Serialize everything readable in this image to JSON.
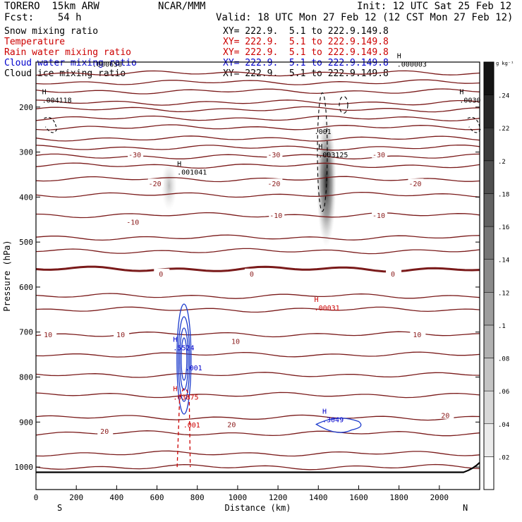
{
  "header": {
    "model": "TORERO  15km ARW",
    "org": "NCAR/MMM",
    "init": "Init: 12 UTC Sat 25 Feb 12",
    "fcst": "Fcst:    54 h",
    "valid": "Valid: 18 UTC Mon 27 Feb 12 (12 CST Mon 27 Feb 12)"
  },
  "legend": [
    {
      "name": "Snow mixing ratio",
      "xy": "XY= 222.9.  5.1 to 222.9.149.8",
      "color": "#000000"
    },
    {
      "name": "Temperature",
      "xy": "XY= 222.9.  5.1 to 222.9.149.8",
      "color": "#cc0000"
    },
    {
      "name": "Rain water mixing ratio",
      "xy": "XY= 222.9.  5.1 to 222.9.149.8",
      "color": "#cc0000"
    },
    {
      "name": "Cloud water mixing ratio",
      "xy": "XY= 222.9.  5.1 to 222.9.149.8",
      "color": "#0000cc"
    },
    {
      "name": "Cloud ice mixing ratio",
      "xy": "XY= 222.9.  5.1 to 222.9.149.8",
      "color": "#000000"
    }
  ],
  "chart_data": {
    "type": "heatmap",
    "xlabel": "Distance (km)",
    "ylabel": "Pressure (hPa)",
    "xlim": [
      0,
      2200
    ],
    "ylim": [
      1050,
      100
    ],
    "x_ticks": [
      "0",
      "200",
      "400",
      "600",
      "800",
      "1000",
      "1200",
      "1400",
      "1600",
      "1800",
      "2000"
    ],
    "x_tick_values": [
      0,
      200,
      400,
      600,
      800,
      1000,
      1200,
      1400,
      1600,
      1800,
      2000
    ],
    "y_ticks": [
      "200",
      "300",
      "400",
      "500",
      "600",
      "700",
      "800",
      "900",
      "1000"
    ],
    "y_tick_values": [
      200,
      300,
      400,
      500,
      600,
      700,
      800,
      900,
      1000
    ],
    "left_end_label": "S",
    "right_end_label": "N",
    "colorbar": {
      "unit": "g kg⁻¹",
      "ticks": [
        ".02",
        ".04",
        ".06",
        ".08",
        ".1",
        ".12",
        ".14",
        ".16",
        ".18",
        ".2",
        ".22",
        ".24"
      ],
      "tick_values": [
        0.02,
        0.04,
        0.06,
        0.08,
        0.1,
        0.12,
        0.14,
        0.16,
        0.18,
        0.2,
        0.22,
        0.24
      ],
      "range": [
        0,
        0.26
      ]
    },
    "temperature_contours": {
      "color": "#7a1a1a",
      "levels_p": [
        1000,
        970,
        925,
        890,
        840,
        795,
        750,
        705,
        650,
        620,
        560,
        520,
        490,
        440,
        395,
        360,
        330,
        310,
        290,
        270,
        245,
        225,
        205,
        190,
        165,
        145,
        125
      ],
      "labels": [
        {
          "x": 60,
          "p": 705,
          "text": "10"
        },
        {
          "x": 420,
          "p": 705,
          "text": "10"
        },
        {
          "x": 990,
          "p": 720,
          "text": "10"
        },
        {
          "x": 1890,
          "p": 705,
          "text": "10"
        },
        {
          "x": 340,
          "p": 920,
          "text": "20"
        },
        {
          "x": 970,
          "p": 905,
          "text": "20"
        },
        {
          "x": 2030,
          "p": 885,
          "text": "20"
        },
        {
          "x": 620,
          "p": 570,
          "text": "0"
        },
        {
          "x": 1070,
          "p": 570,
          "text": "0"
        },
        {
          "x": 1770,
          "p": 570,
          "text": "0"
        },
        {
          "x": 480,
          "p": 455,
          "text": "-10"
        },
        {
          "x": 1190,
          "p": 440,
          "text": "-10"
        },
        {
          "x": 1700,
          "p": 440,
          "text": "-10"
        },
        {
          "x": 590,
          "p": 370,
          "text": "-20"
        },
        {
          "x": 1180,
          "p": 370,
          "text": "-20"
        },
        {
          "x": 1880,
          "p": 370,
          "text": "-20"
        },
        {
          "x": 490,
          "p": 305,
          "text": "-30"
        },
        {
          "x": 1180,
          "p": 305,
          "text": "-30"
        },
        {
          "x": 1700,
          "p": 305,
          "text": "-30"
        }
      ],
      "zero_contour_p": 560
    },
    "extrema_labels": [
      {
        "x": 30,
        "p": 190,
        "mark": "H",
        "text": ".004118",
        "color": "#000000"
      },
      {
        "x": 280,
        "p": 110,
        "mark": "",
        "text": ".000650",
        "color": "#000000"
      },
      {
        "x": 700,
        "p": 350,
        "mark": "H",
        "text": ".001041",
        "color": "#000000"
      },
      {
        "x": 1400,
        "p": 312,
        "mark": "H",
        "text": ".003125",
        "color": "#000000"
      },
      {
        "x": 1790,
        "p": 110,
        "mark": "H",
        "text": ".000003",
        "color": "#000000"
      },
      {
        "x": 2100,
        "p": 190,
        "mark": "H",
        "text": ".0030",
        "color": "#000000"
      },
      {
        "x": 1380,
        "p": 652,
        "mark": "H",
        "text": ".00031",
        "color": "#cc0000"
      },
      {
        "x": 680,
        "p": 740,
        "mark": "H",
        "text": ".5524",
        "color": "#0000cc"
      },
      {
        "x": 680,
        "p": 850,
        "mark": "H",
        "text": ".03875",
        "color": "#cc0000"
      },
      {
        "x": 1420,
        "p": 900,
        "mark": "H",
        "text": ".3049",
        "color": "#0000cc"
      },
      {
        "x": 1380,
        "p": 260,
        "mark": "",
        "text": ".001",
        "color": "#000000"
      },
      {
        "x": 740,
        "p": 785,
        "mark": "",
        "text": ".001",
        "color": "#0000cc"
      },
      {
        "x": 730,
        "p": 912,
        "mark": "",
        "text": ".001",
        "color": "#cc0000"
      }
    ],
    "snow_shading": [
      {
        "x": 1440,
        "p_top": 220,
        "p_bottom": 510,
        "max": 0.26
      },
      {
        "x": 660,
        "p_top": 320,
        "p_bottom": 430,
        "max": 0.08
      }
    ],
    "terrain_p": 1010
  }
}
